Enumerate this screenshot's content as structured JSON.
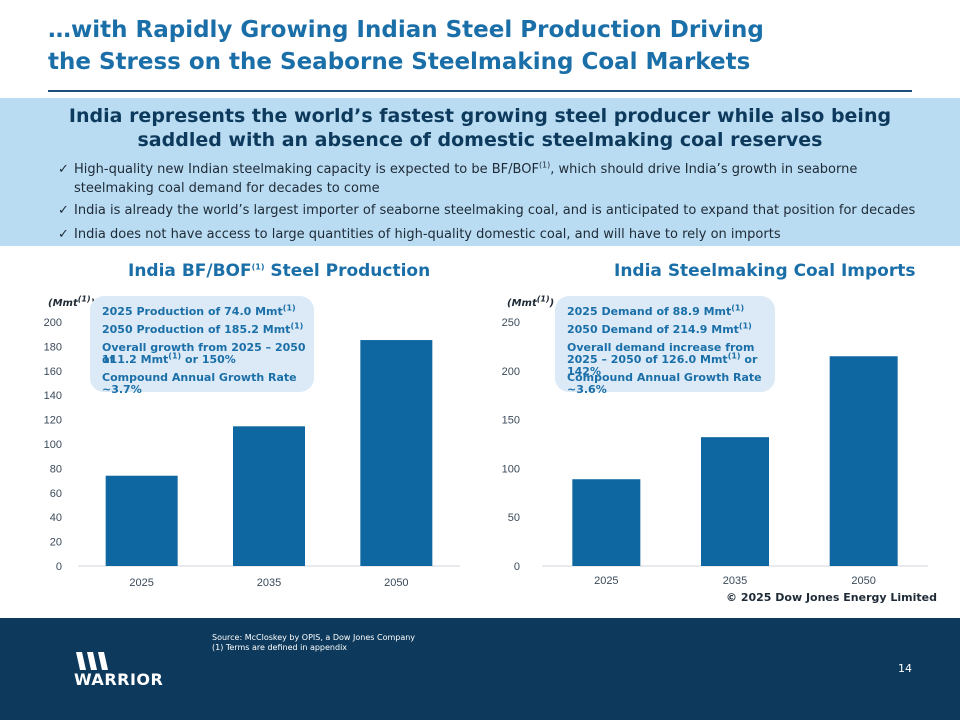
{
  "title": {
    "line1": "…with Rapidly Growing Indian Steel Production Driving",
    "line2": "the Stress on the Seaborne Steelmaking Coal Markets"
  },
  "banner": {
    "headline": "India represents the world’s fastest growing steel producer while also being saddled with an absence of domestic steelmaking coal reserves",
    "check_icon": "check-icon",
    "bullets": [
      {
        "pre": "High-quality new Indian steelmaking capacity is expected to be BF/BOF",
        "sup": "(1)",
        "post": ", which should drive India’s growth in seaborne steelmaking coal demand for decades to come"
      },
      {
        "pre": "India is already the world’s largest importer of seaborne steelmaking coal, and is anticipated to expand that position for decades",
        "sup": "",
        "post": ""
      },
      {
        "pre": "India does not have access to large quantities of high-quality domestic coal, and will have to rely on imports",
        "sup": "",
        "post": ""
      }
    ]
  },
  "chart_data": [
    {
      "type": "bar",
      "title_pre": "India BF/BOF",
      "title_sup": "(1)",
      "title_post": " Steel Production",
      "unit_label": "(Mmt",
      "unit_sup": "(1)",
      "unit_close": ")",
      "categories": [
        "2025",
        "2035",
        "2050"
      ],
      "values": [
        74.0,
        114.5,
        185.2
      ],
      "ylim": [
        0,
        200
      ],
      "yticks": [
        0,
        20,
        40,
        60,
        80,
        100,
        120,
        140,
        160,
        180,
        200
      ],
      "ytick_labels": [
        "0",
        "20",
        "40",
        "60",
        "80",
        "100",
        "120",
        "140",
        "160",
        "180",
        "200"
      ],
      "bar_color": "#0e67a0",
      "callout": [
        {
          "pre": "2025 Production of 74.0 Mmt",
          "sup": "(1)",
          "post": ""
        },
        {
          "pre": "2050 Production of 185.2 Mmt",
          "sup": "(1)",
          "post": ""
        },
        {
          "pre": "Overall growth from 2025 – 2050 of",
          "sup": "",
          "post": ""
        },
        {
          "pre": "111.2 Mmt",
          "sup": "(1)",
          "post": " or 150%"
        },
        {
          "pre": "Compound Annual Growth Rate ~3.7%",
          "sup": "",
          "post": ""
        }
      ]
    },
    {
      "type": "bar",
      "title_pre": "India Steelmaking Coal Imports",
      "title_sup": "",
      "title_post": "",
      "unit_label": "(Mmt",
      "unit_sup": "(1)",
      "unit_close": ")",
      "categories": [
        "2025",
        "2035",
        "2050"
      ],
      "values": [
        88.9,
        132.0,
        214.9
      ],
      "ylim": [
        0,
        250
      ],
      "yticks": [
        0,
        50,
        100,
        150,
        200,
        250
      ],
      "ytick_labels": [
        "0",
        "50",
        "100",
        "150",
        "200",
        "250"
      ],
      "bar_color": "#0e67a0",
      "callout": [
        {
          "pre": "2025 Demand of 88.9 Mmt",
          "sup": "(1)",
          "post": ""
        },
        {
          "pre": "2050 Demand of 214.9 Mmt",
          "sup": "(1)",
          "post": ""
        },
        {
          "pre": "Overall demand increase from",
          "sup": "",
          "post": ""
        },
        {
          "pre": "2025 – 2050 of 126.0 Mmt",
          "sup": "(1)",
          "post": " or 142%"
        },
        {
          "pre": "Compound Annual Growth Rate ~3.6%",
          "sup": "",
          "post": ""
        }
      ]
    }
  ],
  "copyright": "© 2025 Dow Jones Energy Limited",
  "footer": {
    "source_line": "Source: McCloskey by OPIS, a Dow Jones Company",
    "note_line": "(1) Terms are defined in appendix",
    "logo_icon": "warrior-logo-icon",
    "logo_text": "WARRIOR",
    "page_number": "14"
  },
  "colors": {
    "title": "#1b6fa8",
    "banner_bg": "#b9dcf2",
    "footer_bg": "#0d3a5c",
    "bar": "#0e67a0",
    "callout_bg": "#dbeaf6"
  }
}
